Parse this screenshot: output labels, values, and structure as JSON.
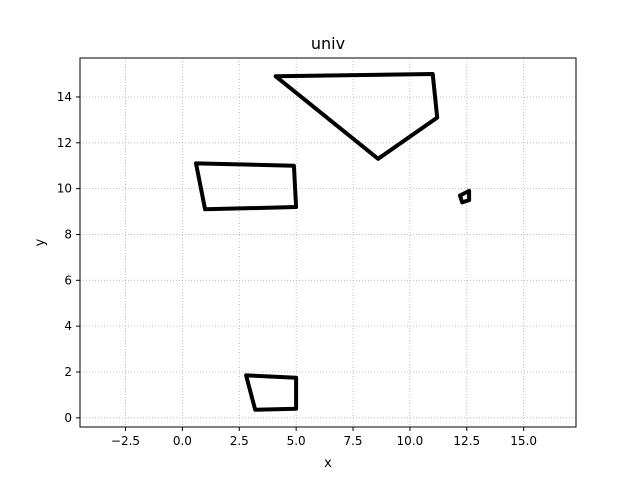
{
  "chart_data": {
    "type": "line",
    "title": "univ",
    "xlabel": "x",
    "ylabel": "y",
    "xlim": [
      -4.5,
      17.3
    ],
    "ylim": [
      -0.4,
      15.7
    ],
    "xticks": [
      -2.5,
      0.0,
      2.5,
      5.0,
      7.5,
      10.0,
      12.5,
      15.0
    ],
    "xtick_labels": [
      "−2.5",
      "0.0",
      "2.5",
      "5.0",
      "7.5",
      "10.0",
      "12.5",
      "15.0"
    ],
    "yticks": [
      0,
      2,
      4,
      6,
      8,
      10,
      12,
      14
    ],
    "ytick_labels": [
      "0",
      "2",
      "4",
      "6",
      "8",
      "10",
      "12",
      "14"
    ],
    "grid": true,
    "line_color": "#000000",
    "series": [
      {
        "x": [
          4.1,
          11.0,
          11.2,
          8.6,
          4.1
        ],
        "y": [
          14.9,
          15.0,
          13.1,
          11.3,
          14.9
        ]
      },
      {
        "x": [
          0.6,
          4.9,
          5.0,
          1.0,
          0.6
        ],
        "y": [
          11.1,
          11.0,
          9.2,
          9.1,
          11.1
        ]
      },
      {
        "x": [
          12.2,
          12.6,
          12.6,
          12.3,
          12.2
        ],
        "y": [
          9.7,
          9.9,
          9.5,
          9.4,
          9.7
        ]
      },
      {
        "x": [
          2.8,
          5.0,
          5.0,
          3.2,
          2.8
        ],
        "y": [
          1.85,
          1.75,
          0.4,
          0.35,
          1.85
        ]
      }
    ]
  }
}
